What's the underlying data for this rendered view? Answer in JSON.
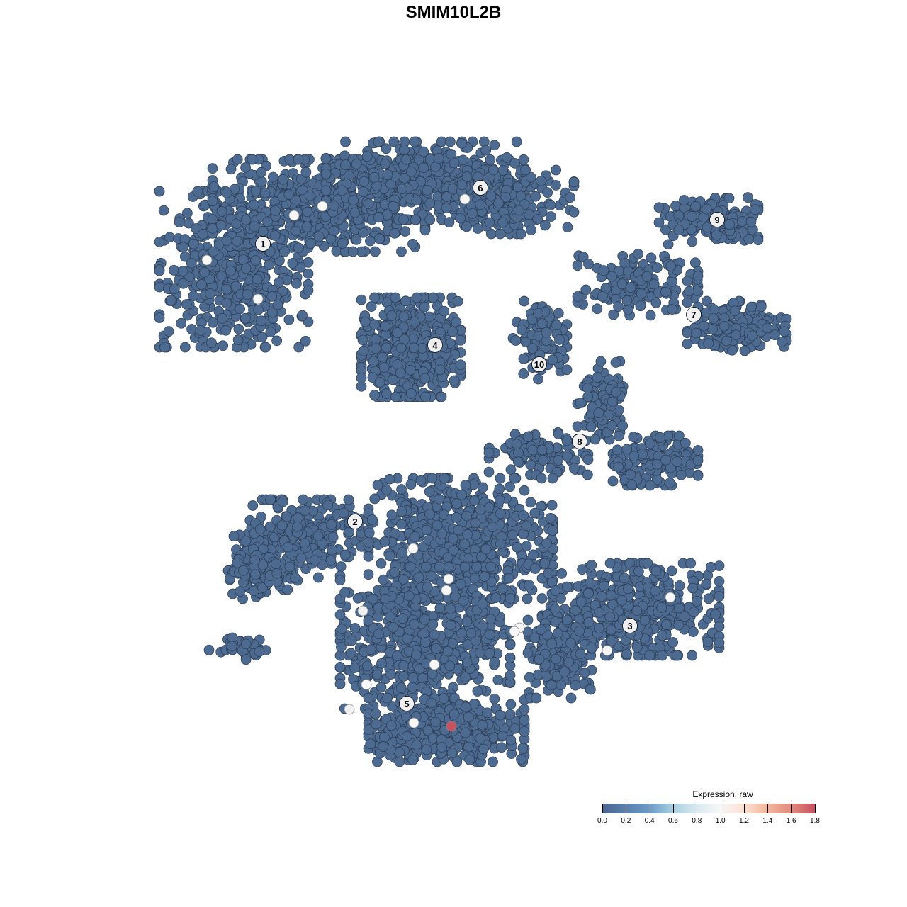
{
  "chart_data": {
    "type": "scatter",
    "title": "SMIM10L2B",
    "xlabel": "",
    "ylabel": "",
    "grid": false,
    "axes_visible": false,
    "xlim": [
      -64,
      64
    ],
    "ylim": [
      -64,
      64
    ],
    "color_scale": {
      "title": "Expression, raw",
      "min": 0.0,
      "max": 1.8,
      "ticks": [
        "0.0",
        "0.2",
        "0.4",
        "0.6",
        "0.8",
        "1.0",
        "1.2",
        "1.4",
        "1.6",
        "1.8"
      ],
      "colors": [
        "#4a6590",
        "#f7f7f7",
        "#c85161"
      ],
      "legend_position": "bottom-right"
    },
    "default_point_color": "#4d6a90",
    "default_point_value": 0.0,
    "cluster_labels": [
      {
        "label": "1",
        "x": -26.9,
        "y": 29.6
      },
      {
        "label": "2",
        "x": -13.9,
        "y": -9.6
      },
      {
        "label": "3",
        "x": 24.9,
        "y": -24.3
      },
      {
        "label": "4",
        "x": -2.6,
        "y": 15.3
      },
      {
        "label": "5",
        "x": -6.6,
        "y": -35.3
      },
      {
        "label": "6",
        "x": 3.8,
        "y": 37.5
      },
      {
        "label": "7",
        "x": 33.9,
        "y": 19.6
      },
      {
        "label": "8",
        "x": 17.8,
        "y": 1.7
      },
      {
        "label": "9",
        "x": 37.2,
        "y": 33.0
      },
      {
        "label": "10",
        "x": 12.1,
        "y": 12.6
      }
    ],
    "expressed_points": [
      {
        "x": -22.5,
        "y": 33.6,
        "value": 1.0
      },
      {
        "x": -18.5,
        "y": 34.9,
        "value": 1.0
      },
      {
        "x": -34.8,
        "y": 27.3,
        "value": 1.0
      },
      {
        "x": -27.6,
        "y": 21.8,
        "value": 1.0
      },
      {
        "x": 1.6,
        "y": 35.9,
        "value": 1.0
      },
      {
        "x": -5.7,
        "y": -13.4,
        "value": 1.0
      },
      {
        "x": -0.7,
        "y": -17.7,
        "value": 1.0
      },
      {
        "x": -1.0,
        "y": -19.3,
        "value": 1.0
      },
      {
        "x": -12.8,
        "y": -22.2,
        "value": 0.95
      },
      {
        "x": 9.3,
        "y": -24.6,
        "value": 1.0
      },
      {
        "x": 8.6,
        "y": -25.1,
        "value": 1.0
      },
      {
        "x": 21.7,
        "y": -27.8,
        "value": 1.0
      },
      {
        "x": 30.6,
        "y": -20.3,
        "value": 1.0
      },
      {
        "x": -12.3,
        "y": -32.6,
        "value": 1.0
      },
      {
        "x": -14.7,
        "y": -36.1,
        "value": 0.95
      },
      {
        "x": -5.6,
        "y": -38.0,
        "value": 1.0
      },
      {
        "x": -2.7,
        "y": -29.8,
        "value": 1.0
      },
      {
        "x": -0.3,
        "y": -38.5,
        "value": 1.8
      }
    ]
  }
}
